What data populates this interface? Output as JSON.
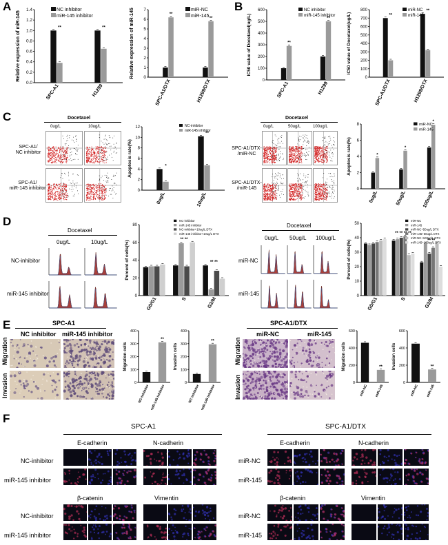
{
  "panels": {
    "A": "A",
    "B": "B",
    "C": "C",
    "D": "D",
    "E": "E",
    "F": "F"
  },
  "colors": {
    "dark": "#111111",
    "gray": "#9a9a9a",
    "flowRed": "#d22020",
    "histFill": "#a8403a",
    "ifBg": "#070712",
    "ifBlue": "#3030b0",
    "ifRed": "#c0305a"
  },
  "chart_data": [
    {
      "id": "A1",
      "type": "bar",
      "categories": [
        "SPC-A1",
        "H1299"
      ],
      "series": [
        {
          "name": "NC inhibitor",
          "values": [
            1.0,
            1.0
          ]
        },
        {
          "name": "miR-145 inhibitor",
          "values": [
            0.38,
            0.65
          ]
        }
      ],
      "ylabel": "Relative expression of miR-145",
      "ylim": [
        0,
        1.4
      ],
      "yticks": [
        "0.0",
        "0.2",
        "0.4",
        "0.6",
        "0.8",
        "1.0",
        "1.2",
        "1.4"
      ],
      "sig": [
        "**",
        "**"
      ],
      "legend": "top-right"
    },
    {
      "id": "A2",
      "type": "bar",
      "categories": [
        "SPC-A1/DTX",
        "H1299/DTX"
      ],
      "series": [
        {
          "name": "miR-NC",
          "values": [
            1.0,
            1.0
          ]
        },
        {
          "name": "miR-145",
          "values": [
            6.2,
            5.8
          ]
        }
      ],
      "ylabel": "Relative expression of miR-145",
      "ylim": [
        0,
        7
      ],
      "yticks": [
        "0",
        "1",
        "2",
        "3",
        "4",
        "5",
        "6",
        "7"
      ],
      "sig": [
        "**",
        "**"
      ],
      "legend": "top-right"
    },
    {
      "id": "B1",
      "type": "bar",
      "categories": [
        "SPC-A1",
        "H1299"
      ],
      "series": [
        {
          "name": "NC inhibitor",
          "values": [
            100,
            200
          ]
        },
        {
          "name": "miR-145 inhibitor",
          "values": [
            290,
            500
          ]
        }
      ],
      "ylabel": "IC50 value of Docetaxel(ug/L)",
      "ylim": [
        0,
        600
      ],
      "yticks": [
        "0",
        "100",
        "200",
        "300",
        "400",
        "500",
        "600"
      ],
      "sig": [
        "**",
        "**"
      ],
      "legend": "top-right"
    },
    {
      "id": "B2",
      "type": "bar",
      "categories": [
        "SPC-A1/DTX",
        "H1299/DTX"
      ],
      "series": [
        {
          "name": "miR-NC",
          "values": [
            700,
            750
          ]
        },
        {
          "name": "miR-145",
          "values": [
            200,
            320
          ]
        }
      ],
      "ylabel": "IC50 value of Docetaxel(ug/L)",
      "ylim": [
        0,
        800
      ],
      "yticks": [
        "0",
        "100",
        "200",
        "300",
        "400",
        "500",
        "600",
        "700",
        "800"
      ],
      "sig": [
        "**",
        "**"
      ],
      "legend": "top-right"
    },
    {
      "id": "C1",
      "type": "bar",
      "categories": [
        "0ug/L",
        "10ug/L"
      ],
      "series": [
        {
          "name": "NC-inhibitor",
          "values": [
            4.0,
            10.2
          ]
        },
        {
          "name": "miR-145 inhibitor",
          "values": [
            1.6,
            4.7
          ]
        }
      ],
      "ylabel": "Apoptosis rate(%)",
      "ylim": [
        0,
        12
      ],
      "yticks": [
        "0",
        "2",
        "4",
        "6",
        "8",
        "10",
        "12"
      ],
      "sig": [
        "*",
        "**"
      ],
      "legend": "top-right"
    },
    {
      "id": "C2",
      "type": "bar",
      "categories": [
        "0ug/L",
        "50ug/L",
        "100ug/L"
      ],
      "series": [
        {
          "name": "miR-NC",
          "values": [
            2.0,
            2.4,
            5.1
          ]
        },
        {
          "name": "miR-145",
          "values": [
            3.8,
            4.7,
            7.9
          ]
        }
      ],
      "ylabel": "Apoptosis rate(%)",
      "ylim": [
        0,
        8
      ],
      "yticks": [
        "0",
        "2",
        "4",
        "6",
        "8"
      ],
      "sig": [
        "*",
        "*",
        "*"
      ],
      "legend": "top-right"
    },
    {
      "id": "D1",
      "type": "bar",
      "categories": [
        "G0/G1",
        "S",
        "G2/M"
      ],
      "series": [
        {
          "name": "NC-inhibitor",
          "values": [
            32,
            34,
            34
          ]
        },
        {
          "name": "miR-145 inhibitor",
          "values": [
            33,
            59,
            7
          ]
        },
        {
          "name": "NC-inhibitor+10ug/L DTX",
          "values": [
            33,
            33,
            28
          ]
        },
        {
          "name": "miR-145 inhibitor+10ug/L DTX",
          "values": [
            35,
            60,
            19
          ]
        }
      ],
      "ylabel": "Percent of cells(%)",
      "ylim": [
        0,
        80
      ],
      "yticks": [
        "0",
        "20",
        "40",
        "60",
        "80"
      ],
      "sig": [
        "",
        "** **",
        "** **"
      ],
      "legend": "top-right"
    },
    {
      "id": "D2",
      "type": "bar",
      "categories": [
        "G0/G1",
        "S",
        "G2/M"
      ],
      "series": [
        {
          "name": "miR-NC",
          "values": [
            36,
            38,
            23
          ]
        },
        {
          "name": "miR-145",
          "values": [
            35,
            39,
            36
          ]
        },
        {
          "name": "miR-NC+50ug/L DTX",
          "values": [
            36,
            40,
            29
          ]
        },
        {
          "name": "miR-145+50ug/L DTX",
          "values": [
            37,
            41,
            33
          ]
        },
        {
          "name": "miR-NC+100ug/L DTX",
          "values": [
            38,
            28,
            36
          ]
        },
        {
          "name": "miR-145+100ug/L DTX",
          "values": [
            39,
            29,
            20
          ]
        }
      ],
      "ylabel": "Percent of cells(%)",
      "ylim": [
        0,
        50
      ],
      "yticks": [
        "0",
        "10",
        "20",
        "30",
        "40",
        "50"
      ],
      "sig": [
        "",
        "** ** ** **",
        "** **"
      ],
      "legend": "top-right"
    },
    {
      "id": "E1",
      "type": "bar",
      "categories": [
        "NC-inhibitor",
        "miR-145 inhibitor"
      ],
      "values": [
        80,
        310
      ],
      "ylabel": "Migration cells",
      "ylim": [
        0,
        400
      ],
      "yticks": [
        "0",
        "100",
        "200",
        "300",
        "400"
      ],
      "sig": [
        "",
        "**"
      ]
    },
    {
      "id": "E2",
      "type": "bar",
      "categories": [
        "NC-inhibitor",
        "miR-145 inhibitor"
      ],
      "values": [
        65,
        295
      ],
      "ylabel": "Invasion cells",
      "ylim": [
        0,
        400
      ],
      "yticks": [
        "0",
        "100",
        "200",
        "300",
        "400"
      ],
      "sig": [
        "",
        "**"
      ]
    },
    {
      "id": "E3",
      "type": "bar",
      "categories": [
        "miR-NC",
        "miR-145"
      ],
      "values": [
        460,
        145
      ],
      "ylabel": "Migration cells",
      "ylim": [
        0,
        600
      ],
      "yticks": [
        "0",
        "200",
        "400",
        "600"
      ],
      "sig": [
        "",
        "**"
      ]
    },
    {
      "id": "E4",
      "type": "bar",
      "categories": [
        "miR-NC",
        "miR-145"
      ],
      "values": [
        450,
        150
      ],
      "ylabel": "Invasion cells",
      "ylim": [
        0,
        600
      ],
      "yticks": [
        "0",
        "200",
        "400",
        "600"
      ],
      "sig": [
        "",
        "**"
      ]
    }
  ],
  "flowC": {
    "left": {
      "title": "Docetaxel",
      "cols": [
        "0ug/L",
        "10ug/L"
      ],
      "rows": [
        "SPC-A1/\nNC inhibitor",
        "SPC-A1/\nmiR-145 inhibitor"
      ]
    },
    "right": {
      "title": "Docetaxel",
      "cols": [
        "0ug/L",
        "50ug/L",
        "100ug/L"
      ],
      "rows": [
        "SPC-A1/DTX-\n/miR-NC",
        "SPC-A1/DTX-\n/miR-145"
      ]
    }
  },
  "histD": {
    "left": {
      "title": "Docetaxel",
      "cols": [
        "0ug/L",
        "10ug/L"
      ],
      "rows": [
        "NC-inhibitor",
        "miR-145 inhibitor"
      ]
    },
    "right": {
      "title": "Docetaxel",
      "cols": [
        "0ug/L",
        "50ug/L",
        "100ug/L"
      ],
      "rows": [
        "miR-NC",
        "miR-145"
      ]
    }
  },
  "transwellE": {
    "left": {
      "title": "SPC-A1",
      "cols": [
        "NC inhibitor",
        "miR-145 inhibitor"
      ],
      "rows": [
        "Migration",
        "Invasion"
      ]
    },
    "right": {
      "title": "SPC-A1/DTX",
      "cols": [
        "miR-NC",
        "miR-145"
      ],
      "rows": [
        "Migration",
        "Invasion"
      ]
    }
  },
  "ifF": {
    "left": {
      "title": "SPC-A1",
      "markers_top": [
        "E-cadherin",
        "N-cadherin"
      ],
      "markers_bottom": [
        "β-catenin",
        "Vimentin"
      ],
      "rows": [
        "NC-inhibitor",
        "miR-145 inhibitor"
      ]
    },
    "right": {
      "title": "SPC-A1/DTX",
      "markers_top": [
        "E-cadherin",
        "N-cadherin"
      ],
      "markers_bottom": [
        "β-catenin",
        "Vimentin"
      ],
      "rows": [
        "miR-NC",
        "miR-145"
      ]
    }
  }
}
